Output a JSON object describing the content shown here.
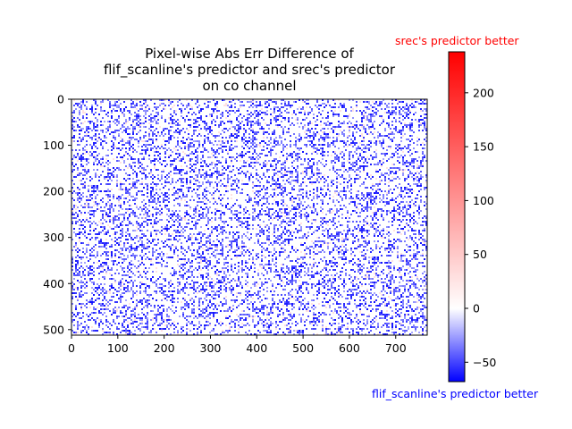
{
  "chart_data": {
    "type": "heatmap",
    "title_lines": [
      "Pixel-wise Abs Err Difference of",
      "flif_scanline's predictor and srec's predictor",
      "on co channel"
    ],
    "x_ticks": [
      0,
      100,
      200,
      300,
      400,
      500,
      600,
      700
    ],
    "y_ticks": [
      0,
      100,
      200,
      300,
      400,
      500
    ],
    "xlim": [
      0,
      768
    ],
    "ylim": [
      512,
      0
    ],
    "colorbar": {
      "colormap": "bwr",
      "range": [
        -68,
        238
      ],
      "ticks": [
        -50,
        0,
        50,
        100,
        150,
        200
      ],
      "top_label": "srec's predictor better",
      "top_label_color": "#ff0000",
      "bottom_label": "flif_scanline's predictor better",
      "bottom_label_color": "#0000ff"
    }
  }
}
